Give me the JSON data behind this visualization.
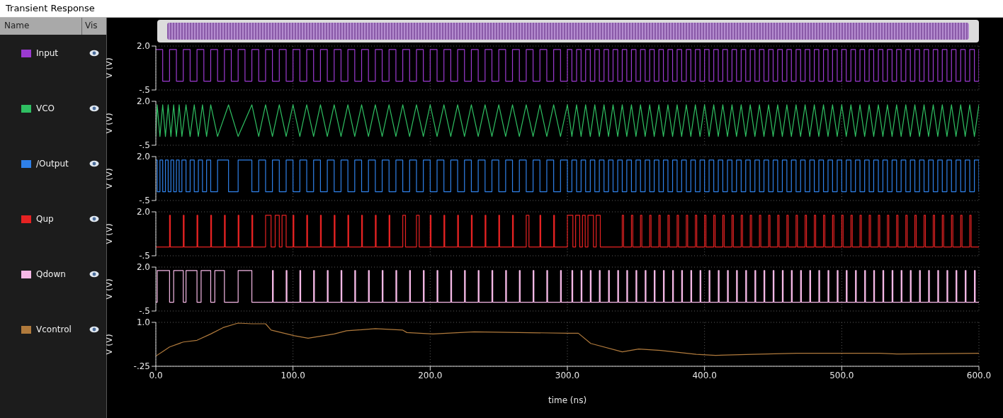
{
  "chart_data": [
    {
      "type": "step",
      "title": "Transient Response",
      "annotations": [
        "Name",
        "Vis"
      ],
      "legend": "left",
      "grid": true,
      "tick_labels": "y",
      "ylabel": "V (V)",
      "xlim": [
        0,
        600
      ],
      "xticks": [
        0,
        100,
        200,
        300,
        400,
        500,
        600
      ],
      "ylim": [
        -0.5,
        2.0
      ],
      "yticks": [
        {
          "value": 2.0,
          "label": "2.0"
        },
        {
          "value": -0.5,
          "label": "-.5"
        }
      ],
      "series": [
        {
          "name": "Input",
          "color": "#9b3ad0",
          "x": [
            0,
            5,
            10,
            15,
            20,
            25,
            30,
            35,
            40,
            45,
            50,
            55,
            60,
            65,
            70,
            75,
            80,
            85,
            90,
            95,
            100,
            105,
            110,
            115,
            120,
            125,
            130,
            135,
            140,
            145,
            150,
            155,
            160,
            165,
            170,
            175,
            180,
            185,
            190,
            195,
            200,
            205,
            210,
            215,
            220,
            225,
            230,
            235,
            240,
            245,
            250,
            255,
            260,
            265,
            270,
            275,
            280,
            285,
            290,
            295,
            300,
            303.3,
            306.7,
            310,
            313.3,
            316.7,
            320,
            323.3,
            326.7,
            330,
            333.3,
            336.7,
            340,
            343.3,
            346.7,
            350,
            353.3,
            356.7,
            360,
            363.3,
            366.7,
            370,
            373.3,
            376.7,
            380,
            383.3,
            386.7,
            390,
            393.3,
            396.7,
            400,
            403.3,
            406.7,
            410,
            413.3,
            416.7,
            420,
            423.3,
            426.7,
            430,
            433.3,
            436.7,
            440,
            443.3,
            446.7,
            450,
            453.3,
            456.7,
            460,
            463.3,
            466.7,
            470,
            473.3,
            476.7,
            480,
            483.3,
            486.7,
            490,
            493.3,
            496.7,
            500,
            503.3,
            506.7,
            510,
            513.3,
            516.7,
            520,
            523.3,
            526.7,
            530,
            533.3,
            536.7,
            540,
            543.3,
            546.7,
            550,
            553.3,
            556.7,
            560,
            563.3,
            566.7,
            570,
            573.3,
            576.7,
            580,
            583.3,
            586.7,
            590,
            593.3,
            596.7,
            600
          ],
          "values": [
            1.8,
            0,
            1.8,
            0,
            1.8,
            0,
            1.8,
            0,
            1.8,
            0,
            1.8,
            0,
            1.8,
            0,
            1.8,
            0,
            1.8,
            0,
            1.8,
            0,
            1.8,
            0,
            1.8,
            0,
            1.8,
            0,
            1.8,
            0,
            1.8,
            0,
            1.8,
            0,
            1.8,
            0,
            1.8,
            0,
            1.8,
            0,
            1.8,
            0,
            1.8,
            0,
            1.8,
            0,
            1.8,
            0,
            1.8,
            0,
            1.8,
            0,
            1.8,
            0,
            1.8,
            0,
            1.8,
            0,
            1.8,
            0,
            1.8,
            0,
            1.8,
            0,
            1.8,
            0,
            1.8,
            0,
            1.8,
            0,
            1.8,
            0,
            1.8,
            0,
            1.8,
            0,
            1.8,
            0,
            1.8,
            0,
            1.8,
            0,
            1.8,
            0,
            1.8,
            0,
            1.8,
            0,
            1.8,
            0,
            1.8,
            0,
            1.8,
            0,
            1.8,
            0,
            1.8,
            0,
            1.8,
            0,
            1.8,
            0,
            1.8,
            0,
            1.8,
            0,
            1.8,
            0,
            1.8,
            0,
            1.8,
            0,
            1.8,
            0,
            1.8,
            0,
            1.8,
            0,
            1.8,
            0,
            1.8,
            0,
            1.8,
            0,
            1.8,
            0,
            1.8,
            0,
            1.8,
            0,
            1.8,
            0,
            1.8,
            0,
            1.8,
            0,
            1.8,
            0,
            1.8,
            0,
            1.8,
            0,
            1.8,
            0,
            1.8,
            0,
            1.8,
            0,
            1.8,
            0,
            1.8,
            0,
            1.8
          ]
        }
      ]
    },
    {
      "type": "line",
      "legend": "left",
      "grid": true,
      "tick_labels": "y",
      "ylabel": "V (V)",
      "xlim": [
        0,
        600
      ],
      "xticks": [
        0,
        100,
        200,
        300,
        400,
        500,
        600
      ],
      "ylim": [
        -0.5,
        2.0
      ],
      "yticks": [
        {
          "value": 2.0,
          "label": "2.0"
        },
        {
          "value": -0.5,
          "label": "-.5"
        }
      ],
      "series": [
        {
          "name": "VCO",
          "color": "#2fbf62",
          "x": [
            0,
            1,
            3,
            5,
            7,
            9,
            11,
            13,
            15,
            17,
            19,
            22,
            25,
            28,
            31,
            34,
            37,
            40,
            45,
            53,
            60,
            70,
            75,
            80,
            85,
            90,
            95,
            100,
            105,
            110,
            115,
            120,
            125,
            130,
            135,
            140,
            145,
            150,
            155,
            160,
            165,
            170,
            175,
            180,
            185,
            190,
            195,
            200,
            205,
            210,
            215,
            220,
            225,
            230,
            235,
            240,
            245,
            250,
            255,
            260,
            265,
            270,
            275,
            280,
            285,
            290,
            295,
            300,
            303.3,
            306.7,
            310,
            313.3,
            316.7,
            320,
            323.3,
            326.7,
            330,
            333.3,
            336.7,
            340,
            343.3,
            346.7,
            350,
            353.3,
            356.7,
            360,
            363.3,
            366.7,
            370,
            373.3,
            376.7,
            380,
            383.3,
            386.7,
            390,
            393.3,
            396.7,
            400,
            403.3,
            406.7,
            410,
            413.3,
            416.7,
            420,
            423.3,
            426.7,
            430,
            433.3,
            436.7,
            440,
            443.3,
            446.7,
            450,
            453.3,
            456.7,
            460,
            463.3,
            466.7,
            470,
            473.3,
            476.7,
            480,
            483.3,
            486.7,
            490,
            493.3,
            496.7,
            500,
            503.3,
            506.7,
            510,
            513.3,
            516.7,
            520,
            523.3,
            526.7,
            530,
            533.3,
            536.7,
            540,
            543.3,
            546.7,
            550,
            553.3,
            556.7,
            560,
            563.3,
            566.7,
            570,
            573.3,
            576.7,
            580,
            583.3,
            586.7,
            590,
            593.3,
            596.7,
            600
          ],
          "values": [
            0,
            1.8,
            0,
            1.8,
            0,
            1.8,
            0,
            1.8,
            0,
            1.8,
            0,
            1.8,
            0,
            1.8,
            0,
            1.8,
            0,
            1.8,
            0,
            1.8,
            0,
            1.8,
            0,
            1.8,
            0,
            1.8,
            0,
            1.8,
            0,
            1.8,
            0,
            1.8,
            0,
            1.8,
            0,
            1.8,
            0,
            1.8,
            0,
            1.8,
            0,
            1.8,
            0,
            1.8,
            0,
            1.8,
            0,
            1.8,
            0,
            1.8,
            0,
            1.8,
            0,
            1.8,
            0,
            1.8,
            0,
            1.8,
            0,
            1.8,
            0,
            1.8,
            0,
            1.8,
            0,
            1.8,
            0,
            1.8,
            0,
            1.8,
            0,
            1.8,
            0,
            1.8,
            0,
            1.8,
            0,
            1.8,
            0,
            1.8,
            0,
            1.8,
            0,
            1.8,
            0,
            1.8,
            0,
            1.8,
            0,
            1.8,
            0,
            1.8,
            0,
            1.8,
            0,
            1.8,
            0,
            1.8,
            0,
            1.8,
            0,
            1.8,
            0,
            1.8,
            0,
            1.8,
            0,
            1.8,
            0,
            1.8,
            0,
            1.8,
            0,
            1.8,
            0,
            1.8,
            0,
            1.8,
            0,
            1.8,
            0,
            1.8,
            0,
            1.8,
            0,
            1.8,
            0,
            1.8,
            0,
            1.8,
            0,
            1.8,
            0,
            1.8,
            0,
            1.8,
            0,
            1.8,
            0,
            1.8,
            0,
            1.8,
            0,
            1.8,
            0,
            1.8,
            0,
            1.8,
            0,
            1.8,
            0,
            1.8,
            0,
            1.8,
            0,
            1.8,
            0,
            1.8
          ]
        }
      ]
    },
    {
      "type": "step",
      "legend": "left",
      "grid": true,
      "tick_labels": "y",
      "ylabel": "V (V)",
      "xlim": [
        0,
        600
      ],
      "xticks": [
        0,
        100,
        200,
        300,
        400,
        500,
        600
      ],
      "ylim": [
        -0.5,
        2.0
      ],
      "yticks": [
        {
          "value": 2.0,
          "label": "2.0"
        },
        {
          "value": -0.5,
          "label": "-.5"
        }
      ],
      "series": [
        {
          "name": "/Output",
          "color": "#2f80e8",
          "x": [
            0,
            1,
            3,
            5,
            7,
            9,
            11,
            13,
            15,
            17,
            19,
            22,
            25,
            28,
            31,
            34,
            37,
            40,
            45,
            53,
            60,
            70,
            75,
            80,
            85,
            90,
            95,
            100,
            105,
            110,
            115,
            120,
            125,
            130,
            135,
            140,
            145,
            150,
            155,
            160,
            165,
            170,
            175,
            180,
            185,
            190,
            195,
            200,
            205,
            210,
            215,
            220,
            225,
            230,
            235,
            240,
            245,
            250,
            255,
            260,
            265,
            270,
            275,
            280,
            285,
            290,
            295,
            300,
            303.3,
            306.7,
            310,
            313.3,
            316.7,
            320,
            323.3,
            326.7,
            330,
            333.3,
            336.7,
            340,
            343.3,
            346.7,
            350,
            353.3,
            356.7,
            360,
            363.3,
            366.7,
            370,
            373.3,
            376.7,
            380,
            383.3,
            386.7,
            390,
            393.3,
            396.7,
            400,
            403.3,
            406.7,
            410,
            413.3,
            416.7,
            420,
            423.3,
            426.7,
            430,
            433.3,
            436.7,
            440,
            443.3,
            446.7,
            450,
            453.3,
            456.7,
            460,
            463.3,
            466.7,
            470,
            473.3,
            476.7,
            480,
            483.3,
            486.7,
            490,
            493.3,
            496.7,
            500,
            503.3,
            506.7,
            510,
            513.3,
            516.7,
            520,
            523.3,
            526.7,
            530,
            533.3,
            536.7,
            540,
            543.3,
            546.7,
            550,
            553.3,
            556.7,
            560,
            563.3,
            566.7,
            570,
            573.3,
            576.7,
            580,
            583.3,
            586.7,
            590,
            593.3,
            596.7,
            600
          ],
          "values": [
            1.8,
            0,
            1.8,
            0,
            1.8,
            0,
            1.8,
            0,
            1.8,
            0,
            1.8,
            0,
            1.8,
            0,
            1.8,
            0,
            1.8,
            0,
            1.8,
            0,
            1.8,
            0,
            1.8,
            0,
            1.8,
            0,
            1.8,
            0,
            1.8,
            0,
            1.8,
            0,
            1.8,
            0,
            1.8,
            0,
            1.8,
            0,
            1.8,
            0,
            1.8,
            0,
            1.8,
            0,
            1.8,
            0,
            1.8,
            0,
            1.8,
            0,
            1.8,
            0,
            1.8,
            0,
            1.8,
            0,
            1.8,
            0,
            1.8,
            0,
            1.8,
            0,
            1.8,
            0,
            1.8,
            0,
            1.8,
            0,
            1.8,
            0,
            1.8,
            0,
            1.8,
            0,
            1.8,
            0,
            1.8,
            0,
            1.8,
            0,
            1.8,
            0,
            1.8,
            0,
            1.8,
            0,
            1.8,
            0,
            1.8,
            0,
            1.8,
            0,
            1.8,
            0,
            1.8,
            0,
            1.8,
            0,
            1.8,
            0,
            1.8,
            0,
            1.8,
            0,
            1.8,
            0,
            1.8,
            0,
            1.8,
            0,
            1.8,
            0,
            1.8,
            0,
            1.8,
            0,
            1.8,
            0,
            1.8,
            0,
            1.8,
            0,
            1.8,
            0,
            1.8,
            0,
            1.8,
            0,
            1.8,
            0,
            1.8,
            0,
            1.8,
            0,
            1.8,
            0,
            1.8,
            0,
            1.8,
            0,
            1.8,
            0,
            1.8,
            0,
            1.8,
            0,
            1.8,
            0,
            1.8,
            0,
            1.8,
            0,
            1.8,
            0,
            1.8,
            0,
            1.8,
            0
          ]
        }
      ]
    },
    {
      "type": "step",
      "legend": "left",
      "grid": true,
      "tick_labels": "y",
      "ylabel": "V (V)",
      "xlim": [
        0,
        600
      ],
      "xticks": [
        0,
        100,
        200,
        300,
        400,
        500,
        600
      ],
      "ylim": [
        -0.5,
        2.0
      ],
      "yticks": [
        {
          "value": 2.0,
          "label": "2.0"
        },
        {
          "value": -0.5,
          "label": "-.5"
        }
      ],
      "series": [
        {
          "name": "Qup",
          "color": "#e52222",
          "x": [
            0,
            10,
            10.6,
            20,
            20.6,
            30,
            30.6,
            40,
            40.6,
            50,
            50.6,
            60,
            60.6,
            70,
            70.6,
            80,
            84,
            87,
            90,
            92,
            95,
            100,
            100.6,
            110,
            110.6,
            120,
            120.6,
            130,
            130.6,
            140,
            140.6,
            150,
            150.6,
            160,
            160.6,
            170,
            170.6,
            180,
            182,
            190,
            192,
            200,
            200.6,
            210,
            210.6,
            220,
            220.6,
            230,
            230.6,
            240,
            240.6,
            250,
            250.6,
            260,
            260.6,
            270,
            272,
            280,
            280.6,
            290,
            290.6,
            300,
            304,
            306,
            309,
            311,
            313,
            315,
            319,
            321,
            324,
            340,
            341,
            346.7,
            347.7,
            353.3,
            354.3,
            360,
            361,
            366.7,
            367.7,
            373.3,
            374.3,
            380,
            381,
            386.7,
            387.7,
            393.3,
            394.3,
            400,
            401,
            406.7,
            407.7,
            413.3,
            414.3,
            420,
            421,
            426.7,
            427.7,
            433.3,
            434.3,
            440,
            441,
            446.7,
            447.7,
            453.3,
            454.3,
            460,
            461,
            466.7,
            467.7,
            473.3,
            474.3,
            480,
            481,
            486.7,
            487.7,
            493.3,
            494.3,
            500,
            501,
            506.7,
            507.7,
            513.3,
            514.3,
            520,
            521,
            526.7,
            527.7,
            533.3,
            534.3,
            540,
            541,
            546.7,
            547.7,
            553.3,
            554.3,
            560,
            561,
            566.7,
            567.7,
            573.3,
            574.3,
            580,
            581,
            586.7,
            587.7,
            593.3,
            594.3,
            600
          ],
          "values": [
            0,
            1.8,
            0,
            1.8,
            0,
            1.8,
            0,
            1.8,
            0,
            1.8,
            0,
            1.8,
            0,
            1.8,
            0,
            1.8,
            0,
            1.8,
            0,
            1.8,
            0,
            1.8,
            0,
            1.8,
            0,
            1.8,
            0,
            1.8,
            0,
            1.8,
            0,
            1.8,
            0,
            1.8,
            0,
            1.8,
            0,
            1.8,
            0,
            1.8,
            0,
            1.8,
            0,
            1.8,
            0,
            1.8,
            0,
            1.8,
            0,
            1.8,
            0,
            1.8,
            0,
            1.8,
            0,
            1.8,
            0,
            1.8,
            0,
            1.8,
            0,
            1.8,
            0,
            1.8,
            0,
            1.8,
            0,
            1.8,
            0,
            1.8,
            0,
            1.8,
            0,
            1.8,
            0,
            1.8,
            0,
            1.8,
            0,
            1.8,
            0,
            1.8,
            0,
            1.8,
            0,
            1.8,
            0,
            1.8,
            0,
            1.8,
            0,
            1.8,
            0,
            1.8,
            0,
            1.8,
            0,
            1.8,
            0,
            1.8,
            0,
            1.8,
            0,
            1.8,
            0,
            1.8,
            0,
            1.8,
            0,
            1.8,
            0,
            1.8,
            0,
            1.8,
            0,
            1.8,
            0,
            1.8,
            0,
            1.8,
            0,
            1.8,
            0,
            1.8,
            0,
            1.8,
            0,
            1.8,
            0,
            1.8,
            0,
            1.8,
            0,
            1.8,
            0,
            1.8,
            0,
            1.8,
            0,
            1.8,
            0,
            1.8,
            0,
            1.8,
            0,
            1.8,
            0,
            1.8,
            0,
            0
          ]
        }
      ]
    },
    {
      "type": "step",
      "legend": "left",
      "grid": true,
      "tick_labels": "y",
      "ylabel": "V (V)",
      "xlim": [
        0,
        600
      ],
      "xticks": [
        0,
        100,
        200,
        300,
        400,
        500,
        600
      ],
      "ylim": [
        -0.5,
        2.0
      ],
      "yticks": [
        {
          "value": 2.0,
          "label": "2.0"
        },
        {
          "value": -0.5,
          "label": "-.5"
        }
      ],
      "series": [
        {
          "name": "Qdown",
          "color": "#f5b8e6",
          "x": [
            0,
            1,
            10,
            13,
            20,
            22,
            30,
            33,
            40,
            43,
            50,
            60,
            70,
            85,
            85.6,
            95,
            95.6,
            105,
            105.6,
            115,
            115.6,
            125,
            125.6,
            135,
            135.6,
            145,
            145.6,
            155,
            155.6,
            165,
            165.6,
            175,
            175.6,
            185,
            185.6,
            195,
            195.6,
            205,
            205.6,
            215,
            215.6,
            225,
            225.6,
            235,
            235.6,
            245,
            245.6,
            255,
            255.6,
            265,
            265.6,
            275,
            275.6,
            285,
            285.6,
            295,
            295.6,
            303.3,
            303.9,
            310,
            310.6,
            316.7,
            317.3,
            323.3,
            323.9,
            330,
            330.6,
            336.7,
            337.3,
            343.3,
            343.9,
            350,
            350.6,
            356.7,
            357.3,
            363.3,
            363.9,
            370,
            370.6,
            376.7,
            377.3,
            383.3,
            383.9,
            390,
            390.6,
            396.7,
            397.3,
            403.3,
            403.9,
            410,
            410.6,
            416.7,
            417.3,
            423.3,
            423.9,
            430,
            430.6,
            436.7,
            437.3,
            443.3,
            443.9,
            450,
            450.6,
            456.7,
            457.3,
            463.3,
            463.9,
            470,
            470.6,
            476.7,
            477.3,
            483.3,
            483.9,
            490,
            490.6,
            496.7,
            497.3,
            503.3,
            503.9,
            510,
            510.6,
            516.7,
            517.3,
            523.3,
            523.9,
            530,
            530.6,
            536.7,
            537.3,
            543.3,
            543.9,
            550,
            550.6,
            556.7,
            557.3,
            563.3,
            563.9,
            570,
            570.6,
            576.7,
            577.3,
            583.3,
            583.9,
            590,
            590.6,
            596.7,
            597.3,
            600
          ],
          "values": [
            0,
            1.8,
            0,
            1.8,
            0,
            1.8,
            0,
            1.8,
            0,
            1.8,
            0,
            1.8,
            0,
            1.8,
            0,
            1.8,
            0,
            1.8,
            0,
            1.8,
            0,
            1.8,
            0,
            1.8,
            0,
            1.8,
            0,
            1.8,
            0,
            1.8,
            0,
            1.8,
            0,
            1.8,
            0,
            1.8,
            0,
            1.8,
            0,
            1.8,
            0,
            1.8,
            0,
            1.8,
            0,
            1.8,
            0,
            1.8,
            0,
            1.8,
            0,
            1.8,
            0,
            1.8,
            0,
            1.8,
            0,
            1.8,
            0,
            1.8,
            0,
            1.8,
            0,
            1.8,
            0,
            1.8,
            0,
            1.8,
            0,
            1.8,
            0,
            1.8,
            0,
            1.8,
            0,
            1.8,
            0,
            1.8,
            0,
            1.8,
            0,
            1.8,
            0,
            1.8,
            0,
            1.8,
            0,
            1.8,
            0,
            1.8,
            0,
            1.8,
            0,
            1.8,
            0,
            1.8,
            0,
            1.8,
            0,
            1.8,
            0,
            1.8,
            0,
            1.8,
            0,
            1.8,
            0,
            1.8,
            0,
            1.8,
            0,
            1.8,
            0,
            1.8,
            0,
            1.8,
            0,
            1.8,
            0,
            1.8,
            0,
            1.8,
            0,
            1.8,
            0,
            1.8,
            0,
            1.8,
            0,
            1.8,
            0,
            1.8,
            0,
            1.8,
            0,
            1.8,
            0,
            1.8,
            0,
            1.8,
            0,
            1.8,
            0,
            1.8,
            0,
            1.8,
            0,
            0
          ]
        }
      ]
    },
    {
      "type": "line",
      "legend": "left",
      "grid": true,
      "xlabel": "time (ns)",
      "ylabel": "V (V)",
      "xlim": [
        0,
        600
      ],
      "xticks": [
        {
          "value": 0,
          "label": "0.0"
        },
        {
          "value": 100,
          "label": "100.0"
        },
        {
          "value": 200,
          "label": "200.0"
        },
        {
          "value": 300,
          "label": "300.0"
        },
        {
          "value": 400,
          "label": "400.0"
        },
        {
          "value": 500,
          "label": "500.0"
        },
        {
          "value": 600,
          "label": "600.0"
        }
      ],
      "ylim": [
        -0.25,
        1.0
      ],
      "yticks": [
        {
          "value": 1.0,
          "label": "1.0"
        },
        {
          "value": -0.25,
          "label": "-.25"
        }
      ],
      "series": [
        {
          "name": "Vcontrol",
          "color": "#b07a3c",
          "x": [
            0,
            5,
            10,
            20,
            30,
            40,
            49,
            60,
            70,
            80,
            84,
            101,
            111,
            130,
            139,
            160,
            180,
            183,
            202,
            232,
            301,
            308,
            317,
            340,
            352,
            368,
            394,
            408,
            435,
            467,
            528,
            540,
            600
          ],
          "values": [
            0.04,
            0.17,
            0.3,
            0.44,
            0.49,
            0.67,
            0.85,
            0.98,
            0.96,
            0.96,
            0.78,
            0.62,
            0.55,
            0.67,
            0.76,
            0.82,
            0.78,
            0.71,
            0.67,
            0.73,
            0.69,
            0.69,
            0.4,
            0.16,
            0.24,
            0.2,
            0.09,
            0.06,
            0.09,
            0.12,
            0.12,
            0.1,
            0.12
          ]
        }
      ]
    }
  ]
}
